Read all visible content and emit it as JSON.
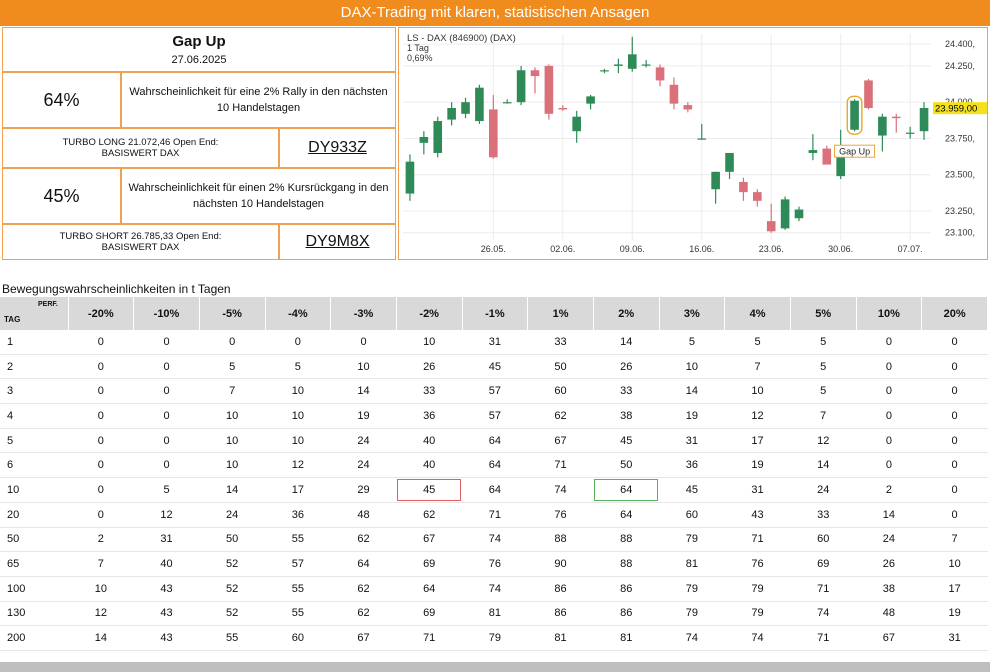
{
  "banner": {
    "title": "DAX-Trading mit klaren, statistischen Ansagen"
  },
  "signal": {
    "name": "Gap Up",
    "date": "27.06.2025"
  },
  "long": {
    "probability": "64%",
    "description": "Wahrscheinlichkeit für eine 2% Rally in den nächsten 10 Handelstagen",
    "product_line1": "TURBO LONG 21.072,46 Open End:",
    "product_line2": "BASISWERT DAX",
    "wkn": "DY933Z"
  },
  "short": {
    "probability": "45%",
    "description": "Wahrscheinlichkeit für einen 2% Kursrückgang in den nächsten 10 Handelstagen",
    "product_line1": "TURBO SHORT 26.785,33 Open End:",
    "product_line2": "BASISWERT DAX",
    "wkn": "DY9M8X"
  },
  "chart_data": {
    "type": "candlestick",
    "title": "LS - DAX (846900) (DAX)",
    "subtitle_period": "1 Tag",
    "subtitle_change": "0,69%",
    "last_price": 23959,
    "last_price_label": "23.959,00",
    "annotation": "Gap Up",
    "ylim": [
      23050,
      24470
    ],
    "yticks": [
      23100,
      23250,
      23500,
      23750,
      24000,
      24250,
      24400
    ],
    "ytick_labels": [
      "23.100,",
      "23.250,",
      "23.500,",
      "23.750,",
      "24.000,",
      "24.250,",
      "24.400,"
    ],
    "xtick_labels": [
      "26.05.",
      "02.06.",
      "09.06.",
      "16.06.",
      "23.06.",
      "30.06.",
      "07.07."
    ],
    "xtick_index": [
      6,
      11,
      16,
      21,
      26,
      31,
      36
    ],
    "up_color": "#2e8b57",
    "down_color": "#d9707a",
    "candles": [
      {
        "o": 23370,
        "h": 23640,
        "l": 23320,
        "c": 23590
      },
      {
        "o": 23720,
        "h": 23800,
        "l": 23640,
        "c": 23760
      },
      {
        "o": 23650,
        "h": 23900,
        "l": 23620,
        "c": 23870
      },
      {
        "o": 23880,
        "h": 24000,
        "l": 23840,
        "c": 23960
      },
      {
        "o": 23920,
        "h": 24030,
        "l": 23890,
        "c": 24000
      },
      {
        "o": 23870,
        "h": 24120,
        "l": 23850,
        "c": 24100
      },
      {
        "o": 23950,
        "h": 24050,
        "l": 23610,
        "c": 23620
      },
      {
        "o": 24000,
        "h": 24020,
        "l": 23990,
        "c": 24000
      },
      {
        "o": 24000,
        "h": 24250,
        "l": 23980,
        "c": 24220
      },
      {
        "o": 24220,
        "h": 24240,
        "l": 24060,
        "c": 24180
      },
      {
        "o": 24250,
        "h": 24260,
        "l": 23880,
        "c": 23920
      },
      {
        "o": 23960,
        "h": 23980,
        "l": 23940,
        "c": 23950
      },
      {
        "o": 23800,
        "h": 23940,
        "l": 23720,
        "c": 23900
      },
      {
        "o": 23990,
        "h": 24050,
        "l": 23950,
        "c": 24040
      },
      {
        "o": 24220,
        "h": 24230,
        "l": 24200,
        "c": 24220
      },
      {
        "o": 24250,
        "h": 24300,
        "l": 24200,
        "c": 24260
      },
      {
        "o": 24230,
        "h": 24450,
        "l": 24210,
        "c": 24330
      },
      {
        "o": 24260,
        "h": 24290,
        "l": 24240,
        "c": 24260
      },
      {
        "o": 24240,
        "h": 24260,
        "l": 24110,
        "c": 24150
      },
      {
        "o": 24120,
        "h": 24170,
        "l": 23950,
        "c": 23990
      },
      {
        "o": 23980,
        "h": 24000,
        "l": 23930,
        "c": 23950
      },
      {
        "o": 23750,
        "h": 23850,
        "l": 23740,
        "c": 23750
      },
      {
        "o": 23400,
        "h": 23520,
        "l": 23300,
        "c": 23520
      },
      {
        "o": 23520,
        "h": 23650,
        "l": 23470,
        "c": 23650
      },
      {
        "o": 23450,
        "h": 23480,
        "l": 23320,
        "c": 23380
      },
      {
        "o": 23380,
        "h": 23400,
        "l": 23280,
        "c": 23320
      },
      {
        "o": 23180,
        "h": 23300,
        "l": 23100,
        "c": 23110
      },
      {
        "o": 23130,
        "h": 23350,
        "l": 23120,
        "c": 23330
      },
      {
        "o": 23200,
        "h": 23280,
        "l": 23180,
        "c": 23260
      },
      {
        "o": 23650,
        "h": 23780,
        "l": 23600,
        "c": 23670
      },
      {
        "o": 23680,
        "h": 23700,
        "l": 23570,
        "c": 23570
      },
      {
        "o": 23490,
        "h": 23810,
        "l": 23470,
        "c": 23650
      },
      {
        "o": 23810,
        "h": 24020,
        "l": 23800,
        "c": 24010
      },
      {
        "o": 24150,
        "h": 24160,
        "l": 23950,
        "c": 23960
      },
      {
        "o": 23770,
        "h": 23920,
        "l": 23660,
        "c": 23900
      },
      {
        "o": 23900,
        "h": 23920,
        "l": 23790,
        "c": 23890
      },
      {
        "o": 23790,
        "h": 23830,
        "l": 23750,
        "c": 23790
      },
      {
        "o": 23800,
        "h": 24000,
        "l": 23740,
        "c": 23960
      }
    ]
  },
  "table": {
    "title": "Bewegungswahrscheinlichkeiten in t Tagen",
    "tag_label": "TAG",
    "perf_label": "PERF.",
    "columns": [
      "-20%",
      "-10%",
      "-5%",
      "-4%",
      "-3%",
      "-2%",
      "-1%",
      "1%",
      "2%",
      "3%",
      "4%",
      "5%",
      "10%",
      "20%"
    ],
    "rows": [
      {
        "tag": "1",
        "v": [
          "0",
          "0",
          "0",
          "0",
          "0",
          "10",
          "31",
          "33",
          "14",
          "5",
          "5",
          "5",
          "0",
          "0"
        ]
      },
      {
        "tag": "2",
        "v": [
          "0",
          "0",
          "5",
          "5",
          "10",
          "26",
          "45",
          "50",
          "26",
          "10",
          "7",
          "5",
          "0",
          "0"
        ]
      },
      {
        "tag": "3",
        "v": [
          "0",
          "0",
          "7",
          "10",
          "14",
          "33",
          "57",
          "60",
          "33",
          "14",
          "10",
          "5",
          "0",
          "0"
        ]
      },
      {
        "tag": "4",
        "v": [
          "0",
          "0",
          "10",
          "10",
          "19",
          "36",
          "57",
          "62",
          "38",
          "19",
          "12",
          "7",
          "0",
          "0"
        ]
      },
      {
        "tag": "5",
        "v": [
          "0",
          "0",
          "10",
          "10",
          "24",
          "40",
          "64",
          "67",
          "45",
          "31",
          "17",
          "12",
          "0",
          "0"
        ]
      },
      {
        "tag": "6",
        "v": [
          "0",
          "0",
          "10",
          "12",
          "24",
          "40",
          "64",
          "71",
          "50",
          "36",
          "19",
          "14",
          "0",
          "0"
        ]
      },
      {
        "tag": "10",
        "v": [
          "0",
          "5",
          "14",
          "17",
          "29",
          "45",
          "64",
          "74",
          "64",
          "45",
          "31",
          "24",
          "2",
          "0"
        ]
      },
      {
        "tag": "20",
        "v": [
          "0",
          "12",
          "24",
          "36",
          "48",
          "62",
          "71",
          "76",
          "64",
          "60",
          "43",
          "33",
          "14",
          "0"
        ]
      },
      {
        "tag": "50",
        "v": [
          "2",
          "31",
          "50",
          "55",
          "62",
          "67",
          "74",
          "88",
          "88",
          "79",
          "71",
          "60",
          "24",
          "7"
        ]
      },
      {
        "tag": "65",
        "v": [
          "7",
          "40",
          "52",
          "57",
          "64",
          "69",
          "76",
          "90",
          "88",
          "81",
          "76",
          "69",
          "26",
          "10"
        ]
      },
      {
        "tag": "100",
        "v": [
          "10",
          "43",
          "52",
          "55",
          "62",
          "64",
          "74",
          "86",
          "86",
          "79",
          "79",
          "71",
          "38",
          "17"
        ]
      },
      {
        "tag": "130",
        "v": [
          "12",
          "43",
          "52",
          "55",
          "62",
          "69",
          "81",
          "86",
          "86",
          "79",
          "79",
          "74",
          "48",
          "19"
        ]
      },
      {
        "tag": "200",
        "v": [
          "14",
          "43",
          "55",
          "60",
          "67",
          "71",
          "79",
          "81",
          "81",
          "74",
          "74",
          "71",
          "67",
          "31"
        ]
      }
    ]
  }
}
